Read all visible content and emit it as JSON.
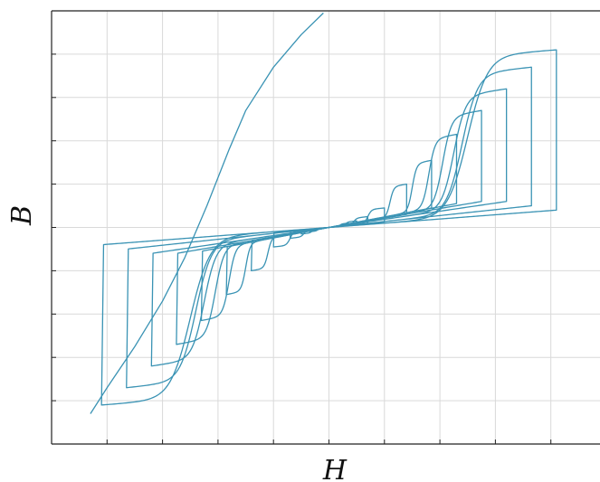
{
  "chart_data": {
    "type": "line",
    "title": "",
    "xlabel": "H",
    "ylabel": "B",
    "xlim": [
      -1.0,
      1.0
    ],
    "ylim": [
      -1.0,
      1.0
    ],
    "grid": true,
    "x_ticks": [
      -0.8,
      -0.6,
      -0.4,
      -0.2,
      0.0,
      0.2,
      0.4,
      0.6,
      0.8
    ],
    "y_ticks": [
      -0.8,
      -0.6,
      -0.4,
      -0.2,
      0.0,
      0.2,
      0.4,
      0.6,
      0.8
    ],
    "tick_labels_shown": false,
    "line_color": "#3a93b4",
    "grid_color": "#d9d9d9",
    "initial_magnetization_curve": {
      "x": [
        -0.86,
        -0.8,
        -0.7,
        -0.6,
        -0.52,
        -0.44,
        -0.36,
        -0.3,
        -0.2,
        -0.1,
        -0.02
      ],
      "y": [
        -0.86,
        -0.74,
        -0.55,
        -0.34,
        -0.14,
        0.1,
        0.36,
        0.54,
        0.74,
        0.89,
        0.99
      ]
    },
    "series": [
      {
        "loop": 1,
        "h_tip": 0.82,
        "b_tip": 0.82,
        "h_coercive": 0.5,
        "b_remanence": 0.74
      },
      {
        "loop": 2,
        "h_tip": 0.73,
        "b_tip": 0.74,
        "h_coercive": 0.48,
        "b_remanence": 0.64
      },
      {
        "loop": 3,
        "h_tip": 0.64,
        "b_tip": 0.64,
        "h_coercive": 0.45,
        "b_remanence": 0.52
      },
      {
        "loop": 4,
        "h_tip": 0.55,
        "b_tip": 0.54,
        "h_coercive": 0.41,
        "b_remanence": 0.42
      },
      {
        "loop": 5,
        "h_tip": 0.46,
        "b_tip": 0.43,
        "h_coercive": 0.36,
        "b_remanence": 0.32
      },
      {
        "loop": 6,
        "h_tip": 0.37,
        "b_tip": 0.31,
        "h_coercive": 0.3,
        "b_remanence": 0.22
      },
      {
        "loop": 7,
        "h_tip": 0.28,
        "b_tip": 0.2,
        "h_coercive": 0.22,
        "b_remanence": 0.14
      },
      {
        "loop": 8,
        "h_tip": 0.2,
        "b_tip": 0.09,
        "h_coercive": 0.14,
        "b_remanence": 0.065
      },
      {
        "loop": 9,
        "h_tip": 0.14,
        "b_tip": 0.05,
        "h_coercive": 0.09,
        "b_remanence": 0.03
      },
      {
        "loop": 10,
        "h_tip": 0.1,
        "b_tip": 0.03,
        "h_coercive": 0.06,
        "b_remanence": 0.018
      },
      {
        "loop": 11,
        "h_tip": 0.07,
        "b_tip": 0.02,
        "h_coercive": 0.04,
        "b_remanence": 0.01
      }
    ]
  }
}
